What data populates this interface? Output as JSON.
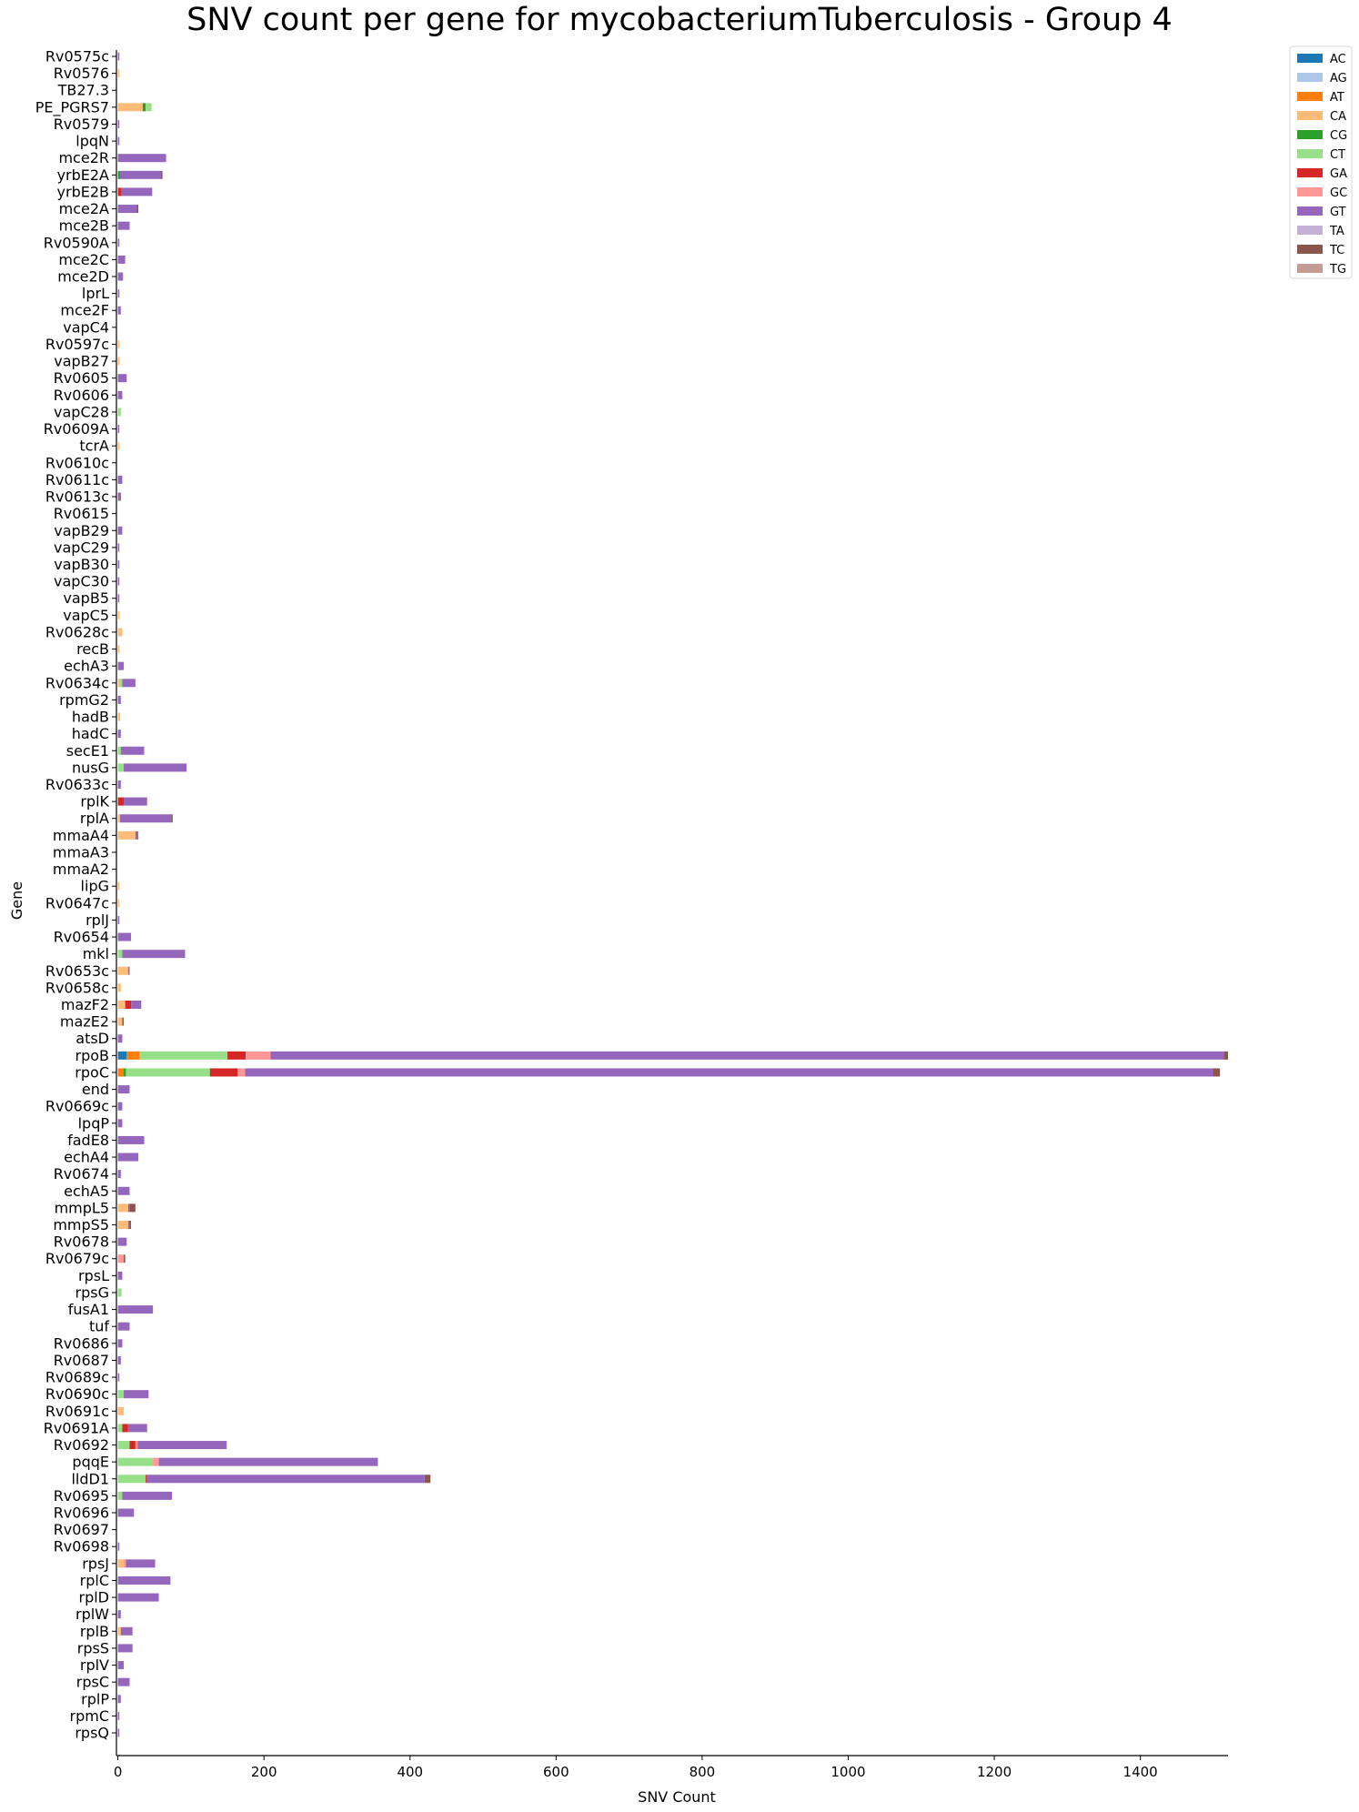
{
  "chart_data": {
    "type": "bar",
    "orientation": "horizontal",
    "stacked": true,
    "title": "SNV count per gene for mycobacteriumTuberculosis - Group 4",
    "xlabel": "SNV Count",
    "ylabel": "Gene",
    "xlim": [
      -2,
      1520
    ],
    "xticks": [
      0,
      200,
      400,
      600,
      800,
      1000,
      1200,
      1400
    ],
    "grid": false,
    "legend_position": "top-right",
    "series_names": [
      "AC",
      "AG",
      "AT",
      "CA",
      "CG",
      "CT",
      "GA",
      "GC",
      "GT",
      "TA",
      "TC",
      "TG"
    ],
    "series_colors": [
      "#1f77b4",
      "#aec7e8",
      "#ff7f0e",
      "#ffbb78",
      "#2ca02c",
      "#98df8a",
      "#d62728",
      "#ff9896",
      "#9467bd",
      "#c5b0d5",
      "#8c564b",
      "#c49c94"
    ],
    "categories": [
      "Rv0575c",
      "Rv0576",
      "TB27.3",
      "PE_PGRS7",
      "Rv0579",
      "lpqN",
      "mce2R",
      "yrbE2A",
      "yrbE2B",
      "mce2A",
      "mce2B",
      "Rv0590A",
      "mce2C",
      "mce2D",
      "lprL",
      "mce2F",
      "vapC4",
      "Rv0597c",
      "vapB27",
      "Rv0605",
      "Rv0606",
      "vapC28",
      "Rv0609A",
      "tcrA",
      "Rv0610c",
      "Rv0611c",
      "Rv0613c",
      "Rv0615",
      "vapB29",
      "vapC29",
      "vapB30",
      "vapC30",
      "vapB5",
      "vapC5",
      "Rv0628c",
      "recB",
      "echA3",
      "Rv0634c",
      "rpmG2",
      "hadB",
      "hadC",
      "secE1",
      "nusG",
      "Rv0633c",
      "rplK",
      "rplA",
      "mmaA4",
      "mmaA3",
      "mmaA2",
      "lipG",
      "Rv0647c",
      "rplJ",
      "Rv0654",
      "mkl",
      "Rv0653c",
      "Rv0658c",
      "mazF2",
      "mazE2",
      "atsD",
      "rpoB",
      "rpoC",
      "end",
      "Rv0669c",
      "lpqP",
      "fadE8",
      "echA4",
      "Rv0674",
      "echA5",
      "mmpL5",
      "mmpS5",
      "Rv0678",
      "Rv0679c",
      "rpsL",
      "rpsG",
      "fusA1",
      "tuf",
      "Rv0686",
      "Rv0687",
      "Rv0689c",
      "Rv0690c",
      "Rv0691c",
      "Rv0691A",
      "Rv0692",
      "pqqE",
      "lldD1",
      "Rv0695",
      "Rv0696",
      "Rv0697",
      "Rv0698",
      "rpsJ",
      "rplC",
      "rplD",
      "rplW",
      "rplB",
      "rpsS",
      "rplV",
      "rpsC",
      "rplP",
      "rpmC",
      "rpsQ"
    ],
    "series": [
      {
        "name": "AC",
        "values": [
          0,
          0,
          0,
          0,
          0,
          0,
          0,
          0,
          0,
          0,
          0,
          0,
          0,
          0,
          0,
          0,
          0,
          0,
          0,
          0,
          0,
          0,
          0,
          0,
          0,
          0,
          0,
          0,
          0,
          0,
          0,
          0,
          0,
          0,
          0,
          0,
          0,
          0,
          0,
          0,
          0,
          0,
          0,
          0,
          0,
          0,
          0,
          0,
          0,
          0,
          0,
          0,
          0,
          0,
          0,
          0,
          0,
          0,
          0,
          12,
          0,
          0,
          0,
          0,
          0,
          0,
          0,
          0,
          0,
          0,
          0,
          0,
          0,
          0,
          0,
          0,
          0,
          0,
          0,
          0,
          0,
          0,
          0,
          0,
          0,
          0,
          0,
          0,
          0,
          0,
          0,
          0,
          0,
          0,
          0,
          0,
          0,
          0,
          0,
          0
        ]
      },
      {
        "name": "AG",
        "values": [
          0,
          0,
          0,
          0,
          0,
          0,
          0,
          0,
          0,
          0,
          0,
          0,
          0,
          0,
          0,
          0,
          0,
          0,
          0,
          0,
          0,
          0,
          0,
          0,
          0,
          0,
          0,
          0,
          0,
          0,
          0,
          0,
          0,
          0,
          0,
          0,
          0,
          0,
          0,
          0,
          0,
          0,
          0,
          0,
          0,
          0,
          0,
          0,
          0,
          0,
          0,
          0,
          0,
          0,
          0,
          0,
          0,
          0,
          0,
          0,
          0,
          0,
          0,
          0,
          0,
          0,
          0,
          0,
          0,
          0,
          0,
          0,
          0,
          0,
          0,
          0,
          0,
          0,
          0,
          0,
          0,
          0,
          0,
          0,
          0,
          0,
          0,
          0,
          0,
          0,
          0,
          0,
          0,
          0,
          0,
          0,
          0,
          0,
          0,
          0
        ]
      },
      {
        "name": "AT",
        "values": [
          0,
          0,
          0,
          0,
          0,
          0,
          0,
          0,
          0,
          0,
          0,
          0,
          0,
          0,
          0,
          0,
          0,
          0,
          0,
          0,
          0,
          0,
          0,
          0,
          0,
          0,
          0,
          0,
          0,
          0,
          0,
          0,
          0,
          0,
          0,
          0,
          0,
          0,
          0,
          0,
          0,
          0,
          0,
          0,
          0,
          0,
          0,
          0,
          0,
          0,
          0,
          0,
          0,
          0,
          0,
          0,
          0,
          0,
          0,
          18,
          8,
          0,
          0,
          0,
          0,
          0,
          0,
          0,
          0,
          0,
          0,
          0,
          0,
          0,
          0,
          0,
          0,
          0,
          0,
          0,
          0,
          0,
          0,
          0,
          0,
          0,
          0,
          0,
          0,
          0,
          0,
          0,
          0,
          0,
          0,
          0,
          0,
          0,
          0,
          0
        ]
      },
      {
        "name": "CA",
        "values": [
          0,
          2,
          0,
          34,
          0,
          0,
          0,
          0,
          0,
          0,
          0,
          0,
          0,
          0,
          0,
          0,
          0,
          2,
          2,
          0,
          0,
          0,
          0,
          2,
          0,
          0,
          0,
          0,
          0,
          0,
          0,
          0,
          0,
          2,
          6,
          2,
          0,
          2,
          0,
          3,
          0,
          0,
          0,
          0,
          0,
          3,
          24,
          0,
          0,
          2,
          2,
          0,
          0,
          0,
          14,
          4,
          10,
          6,
          0,
          0,
          0,
          0,
          0,
          0,
          0,
          0,
          0,
          0,
          14,
          14,
          0,
          0,
          0,
          0,
          0,
          0,
          0,
          0,
          0,
          0,
          8,
          0,
          0,
          0,
          0,
          0,
          0,
          0,
          0,
          8,
          0,
          0,
          0,
          4,
          0,
          0,
          0,
          0,
          0,
          0
        ]
      },
      {
        "name": "CG",
        "values": [
          0,
          0,
          0,
          4,
          0,
          0,
          0,
          3,
          0,
          0,
          0,
          0,
          0,
          0,
          0,
          0,
          0,
          0,
          0,
          0,
          0,
          0,
          0,
          0,
          0,
          0,
          0,
          0,
          0,
          0,
          0,
          0,
          0,
          0,
          0,
          0,
          0,
          0,
          0,
          0,
          0,
          0,
          0,
          0,
          0,
          0,
          0,
          0,
          0,
          0,
          0,
          0,
          0,
          0,
          0,
          0,
          0,
          0,
          0,
          0,
          3,
          0,
          0,
          0,
          0,
          0,
          0,
          0,
          0,
          0,
          0,
          0,
          0,
          0,
          0,
          0,
          0,
          0,
          0,
          0,
          0,
          0,
          0,
          0,
          0,
          0,
          0,
          0,
          0,
          0,
          0,
          0,
          0,
          0,
          0,
          0,
          0,
          0,
          0,
          0
        ]
      },
      {
        "name": "CT",
        "values": [
          0,
          0,
          0,
          8,
          0,
          0,
          0,
          0,
          0,
          0,
          0,
          0,
          0,
          0,
          0,
          0,
          0,
          0,
          0,
          0,
          0,
          4,
          0,
          0,
          0,
          0,
          0,
          0,
          0,
          0,
          0,
          0,
          0,
          0,
          0,
          0,
          0,
          4,
          0,
          0,
          0,
          4,
          8,
          0,
          0,
          0,
          0,
          0,
          0,
          0,
          0,
          0,
          0,
          6,
          0,
          0,
          0,
          0,
          0,
          120,
          115,
          0,
          0,
          0,
          0,
          0,
          0,
          0,
          0,
          0,
          0,
          0,
          0,
          5,
          0,
          0,
          0,
          0,
          0,
          8,
          0,
          6,
          16,
          48,
          38,
          6,
          0,
          0,
          0,
          0,
          0,
          0,
          0,
          0,
          0,
          0,
          0,
          0,
          0,
          0
        ]
      },
      {
        "name": "GA",
        "values": [
          0,
          0,
          0,
          0,
          0,
          0,
          0,
          0,
          5,
          0,
          0,
          0,
          0,
          0,
          0,
          0,
          0,
          0,
          0,
          0,
          0,
          0,
          0,
          0,
          0,
          0,
          0,
          0,
          0,
          0,
          0,
          0,
          0,
          0,
          0,
          0,
          0,
          0,
          0,
          0,
          0,
          0,
          0,
          0,
          8,
          0,
          0,
          0,
          0,
          0,
          0,
          0,
          0,
          0,
          0,
          0,
          8,
          0,
          0,
          25,
          38,
          0,
          0,
          0,
          0,
          0,
          0,
          0,
          0,
          0,
          0,
          0,
          0,
          0,
          0,
          0,
          0,
          0,
          0,
          0,
          0,
          8,
          8,
          0,
          2,
          0,
          0,
          0,
          0,
          0,
          0,
          0,
          0,
          0,
          0,
          0,
          0,
          0,
          0,
          0
        ]
      },
      {
        "name": "GC",
        "values": [
          0,
          0,
          0,
          0,
          0,
          0,
          0,
          0,
          0,
          0,
          0,
          0,
          0,
          0,
          0,
          0,
          0,
          0,
          0,
          0,
          0,
          0,
          0,
          0,
          0,
          0,
          0,
          0,
          0,
          0,
          0,
          0,
          0,
          0,
          0,
          0,
          0,
          0,
          0,
          0,
          0,
          0,
          0,
          0,
          0,
          0,
          0,
          0,
          0,
          0,
          0,
          0,
          0,
          0,
          0,
          0,
          0,
          0,
          0,
          34,
          10,
          0,
          0,
          0,
          0,
          0,
          0,
          0,
          0,
          0,
          0,
          8,
          0,
          0,
          0,
          0,
          0,
          0,
          0,
          0,
          0,
          0,
          3,
          8,
          0,
          0,
          0,
          0,
          0,
          3,
          0,
          0,
          0,
          0,
          0,
          0,
          0,
          0,
          0,
          0
        ]
      },
      {
        "name": "GT",
        "values": [
          2,
          0,
          0,
          0,
          2,
          2,
          66,
          56,
          42,
          26,
          16,
          2,
          10,
          7,
          2,
          4,
          0,
          0,
          0,
          12,
          6,
          0,
          2,
          0,
          0,
          6,
          2,
          0,
          6,
          2,
          2,
          2,
          2,
          0,
          0,
          0,
          8,
          18,
          4,
          0,
          4,
          32,
          86,
          4,
          32,
          70,
          4,
          0,
          0,
          0,
          0,
          2,
          18,
          86,
          2,
          0,
          14,
          0,
          6,
          1305,
          1325,
          16,
          6,
          6,
          36,
          28,
          4,
          16,
          2,
          2,
          12,
          0,
          6,
          0,
          48,
          16,
          6,
          4,
          2,
          34,
          0,
          26,
          122,
          300,
          380,
          68,
          22,
          0,
          2,
          40,
          72,
          56,
          4,
          16,
          20,
          8,
          16,
          4,
          2,
          2
        ]
      },
      {
        "name": "TA",
        "values": [
          0,
          0,
          0,
          0,
          0,
          0,
          0,
          0,
          0,
          0,
          0,
          0,
          0,
          0,
          0,
          0,
          0,
          0,
          0,
          0,
          0,
          0,
          0,
          0,
          0,
          0,
          0,
          0,
          0,
          0,
          0,
          0,
          0,
          0,
          0,
          0,
          0,
          0,
          0,
          0,
          0,
          0,
          0,
          0,
          0,
          0,
          0,
          0,
          0,
          0,
          0,
          0,
          0,
          0,
          0,
          0,
          0,
          0,
          0,
          0,
          0,
          0,
          0,
          0,
          0,
          0,
          0,
          0,
          0,
          0,
          0,
          0,
          0,
          0,
          0,
          0,
          0,
          0,
          0,
          0,
          0,
          0,
          0,
          0,
          0,
          0,
          0,
          0,
          0,
          0,
          0,
          0,
          0,
          0,
          0,
          0,
          0,
          0,
          0,
          0
        ]
      },
      {
        "name": "TC",
        "values": [
          0,
          0,
          0,
          0,
          0,
          0,
          0,
          2,
          0,
          2,
          0,
          0,
          0,
          0,
          0,
          0,
          0,
          0,
          0,
          0,
          0,
          0,
          0,
          0,
          0,
          0,
          2,
          0,
          0,
          0,
          0,
          0,
          0,
          0,
          0,
          0,
          0,
          0,
          0,
          0,
          0,
          0,
          0,
          0,
          0,
          2,
          0,
          0,
          0,
          0,
          0,
          0,
          0,
          0,
          0,
          0,
          0,
          2,
          0,
          6,
          10,
          0,
          0,
          0,
          0,
          0,
          0,
          0,
          8,
          2,
          0,
          2,
          0,
          0,
          0,
          0,
          0,
          0,
          0,
          0,
          0,
          0,
          0,
          0,
          8,
          0,
          0,
          0,
          0,
          0,
          0,
          0,
          0,
          0,
          0,
          0,
          0,
          0,
          0,
          0
        ]
      },
      {
        "name": "TG",
        "values": [
          0,
          0,
          0,
          0,
          0,
          0,
          0,
          0,
          0,
          0,
          0,
          0,
          0,
          0,
          0,
          0,
          0,
          0,
          0,
          0,
          0,
          0,
          0,
          0,
          0,
          0,
          0,
          0,
          0,
          0,
          0,
          0,
          0,
          0,
          0,
          0,
          0,
          0,
          0,
          0,
          0,
          0,
          0,
          0,
          0,
          0,
          0,
          0,
          0,
          0,
          0,
          0,
          0,
          0,
          0,
          0,
          0,
          0,
          0,
          0,
          0,
          0,
          0,
          0,
          0,
          0,
          0,
          0,
          0,
          0,
          0,
          0,
          0,
          0,
          0,
          0,
          0,
          0,
          0,
          0,
          0,
          0,
          0,
          0,
          0,
          0,
          0,
          0,
          0,
          0,
          0,
          0,
          0,
          0,
          0,
          0,
          0,
          0,
          0,
          0
        ]
      }
    ]
  }
}
